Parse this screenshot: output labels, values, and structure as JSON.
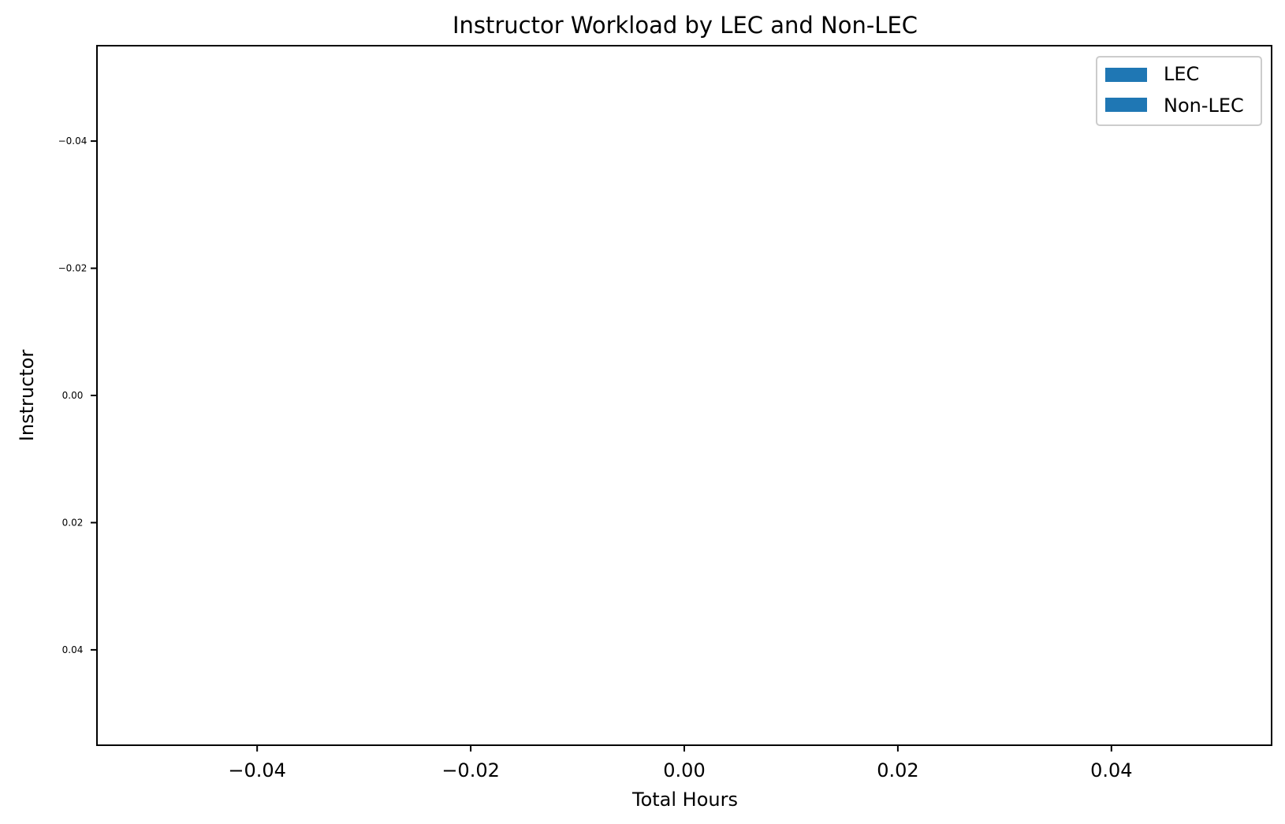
{
  "chart_data": {
    "type": "bar",
    "orientation": "horizontal",
    "stacked": true,
    "title": "Instructor Workload by LEC and Non-LEC",
    "xlabel": "Total Hours",
    "ylabel": "Instructor",
    "xlim": [
      -0.055,
      0.055
    ],
    "ylim": [
      0.055,
      -0.055
    ],
    "x_ticks": [
      -0.04,
      -0.02,
      0.0,
      0.02,
      0.04
    ],
    "x_tick_labels": [
      "−0.04",
      "−0.02",
      "0.00",
      "0.02",
      "0.04"
    ],
    "y_ticks": [
      -0.04,
      -0.02,
      0.0,
      0.02,
      0.04
    ],
    "y_tick_labels": [
      "−0.04",
      "−0.02",
      "0.00",
      "0.02",
      "0.04"
    ],
    "categories": [],
    "series": [
      {
        "name": "LEC",
        "color": "#1f77b4",
        "values": []
      },
      {
        "name": "Non-LEC",
        "color": "#1f77b4",
        "values": []
      }
    ],
    "grid": false,
    "legend_position": "top-right"
  }
}
